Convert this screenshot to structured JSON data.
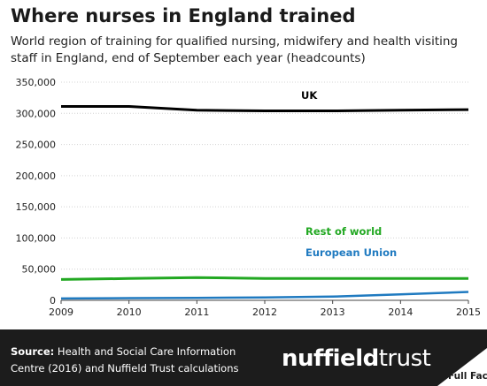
{
  "chart_data": {
    "type": "line",
    "title": "Where nurses in England trained",
    "subtitle": "World region of training for qualified nursing, midwifery and health visiting staff in England, end of September each year (headcounts)",
    "x": [
      2009,
      2010,
      2011,
      2012,
      2013,
      2014,
      2015
    ],
    "x_ticks": [
      "2009",
      "2010",
      "2011",
      "2012",
      "2013",
      "2014",
      "2015"
    ],
    "ylim": [
      0,
      350000
    ],
    "y_ticks": [
      "0",
      "50,000",
      "100,000",
      "150,000",
      "200,000",
      "250,000",
      "300,000",
      "350,000"
    ],
    "grid": true,
    "series": [
      {
        "name": "UK",
        "color": "#000000",
        "values": [
          311000,
          311000,
          305000,
          304000,
          304000,
          305000,
          306000
        ]
      },
      {
        "name": "Rest of world",
        "color": "#22a822",
        "values": [
          33500,
          35000,
          36500,
          35000,
          35000,
          35000,
          35000
        ]
      },
      {
        "name": "European Union",
        "color": "#1f7ac0",
        "values": [
          3000,
          3500,
          4000,
          4500,
          6000,
          9500,
          13500
        ]
      }
    ]
  },
  "footer": {
    "source_label": "Source:",
    "source_text": " Health and Social Care Information Centre (2016) and Nuffield Trust calculations",
    "brand_bold": "nuffield",
    "brand_light": "trust",
    "corner_label": "Full Fact"
  }
}
